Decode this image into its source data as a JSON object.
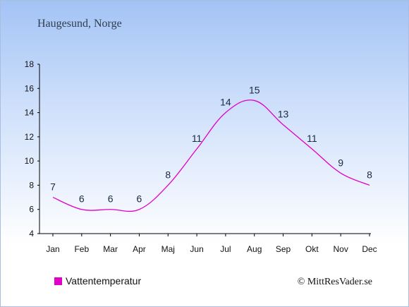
{
  "chart_data": {
    "type": "line",
    "title": "Haugesund, Norge",
    "categories": [
      "Jan",
      "Feb",
      "Mar",
      "Apr",
      "Maj",
      "Jun",
      "Jul",
      "Aug",
      "Sep",
      "Okt",
      "Nov",
      "Dec"
    ],
    "series": [
      {
        "name": "Vattentemperatur",
        "values": [
          7,
          6,
          6,
          6,
          8,
          11,
          14,
          15,
          13,
          11,
          9,
          8
        ],
        "color": "#e000c8"
      }
    ],
    "yticks": [
      4,
      6,
      8,
      10,
      12,
      14,
      16,
      18
    ],
    "ylim": [
      4,
      18
    ],
    "grid": false,
    "legend": "bottom-left"
  },
  "credit": "© MittResVader.se"
}
